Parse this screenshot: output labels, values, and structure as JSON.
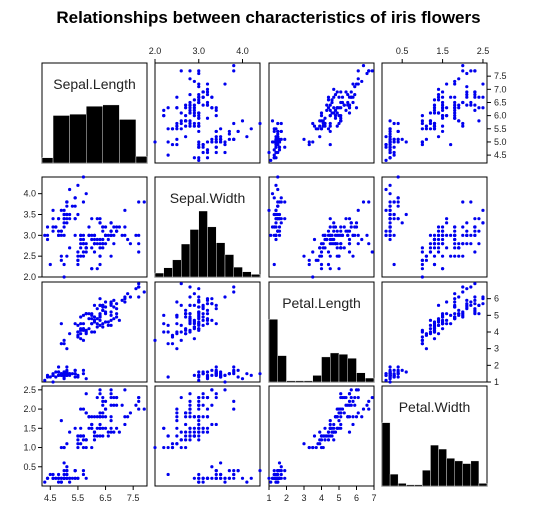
{
  "chart_data": {
    "type": "scatter",
    "subtype": "scatterplot-matrix",
    "title": "Relationships between characteristics of iris flowers",
    "variables": [
      "Sepal.Length",
      "Sepal.Width",
      "Petal.Length",
      "Petal.Width"
    ],
    "ranges": {
      "Sepal.Length": [
        4.2,
        8.0
      ],
      "Sepal.Width": [
        2.0,
        4.4
      ],
      "Petal.Length": [
        1.0,
        7.0
      ],
      "Petal.Width": [
        0.0,
        2.6
      ]
    },
    "tick_labels": {
      "Sepal.Length": [
        "4.5",
        "5.5",
        "6.5",
        "7.5",
        "4.5",
        "5.0",
        "5.5",
        "6.0",
        "6.5",
        "7.0",
        "7.5"
      ],
      "Sepal.Width": [
        "2.0",
        "3.0",
        "4.0",
        "2.0",
        "2.5",
        "3.0",
        "3.5",
        "4.0"
      ],
      "Petal.Length": [
        "1",
        "2",
        "3",
        "4",
        "5",
        "6",
        "7",
        "1",
        "2",
        "3",
        "4",
        "5",
        "6"
      ],
      "Petal.Width": [
        "0.5",
        "1.5",
        "2.5",
        "0.5",
        "1.0",
        "1.5",
        "2.0",
        "2.5"
      ]
    },
    "point_color": "#0000ee",
    "bar_color": "#000000",
    "grid": false,
    "histograms": {
      "Sepal.Length": {
        "bins": [
          4.2,
          4.6,
          5.2,
          5.8,
          6.4,
          7.0,
          7.6,
          8.0
        ],
        "heights": [
          0.08,
          0.72,
          0.74,
          0.86,
          0.88,
          0.66,
          0.1,
          0.08
        ]
      },
      "Sepal.Width": {
        "bins": [
          2.0,
          2.2,
          2.4,
          2.6,
          2.8,
          3.0,
          3.2,
          3.4,
          3.6,
          3.8,
          4.0,
          4.2,
          4.4
        ],
        "heights": [
          0.06,
          0.14,
          0.26,
          0.5,
          0.72,
          1.0,
          0.76,
          0.52,
          0.34,
          0.15,
          0.08,
          0.04
        ]
      },
      "Petal.Length": {
        "bins": [
          1.0,
          1.5,
          2.0,
          2.5,
          3.0,
          3.5,
          4.0,
          4.5,
          5.0,
          5.5,
          6.0,
          6.5,
          7.0
        ],
        "heights": [
          0.95,
          0.4,
          0.02,
          0.02,
          0.02,
          0.1,
          0.38,
          0.44,
          0.42,
          0.36,
          0.14,
          0.06
        ]
      },
      "Petal.Width": {
        "bins": [
          0.0,
          0.2,
          0.4,
          0.6,
          0.8,
          1.0,
          1.2,
          1.4,
          1.6,
          1.8,
          2.0,
          2.2,
          2.4,
          2.6
        ],
        "heights": [
          0.96,
          0.18,
          0.04,
          0.02,
          0.02,
          0.24,
          0.62,
          0.56,
          0.42,
          0.38,
          0.34,
          0.38,
          0.04
        ]
      }
    },
    "points": [
      [
        5.1,
        3.5,
        1.4,
        0.2
      ],
      [
        4.9,
        3.0,
        1.4,
        0.2
      ],
      [
        4.7,
        3.2,
        1.3,
        0.2
      ],
      [
        4.6,
        3.1,
        1.5,
        0.2
      ],
      [
        5.0,
        3.6,
        1.4,
        0.2
      ],
      [
        5.4,
        3.9,
        1.7,
        0.4
      ],
      [
        4.6,
        3.4,
        1.4,
        0.3
      ],
      [
        5.0,
        3.4,
        1.5,
        0.2
      ],
      [
        4.4,
        2.9,
        1.4,
        0.2
      ],
      [
        4.9,
        3.1,
        1.5,
        0.1
      ],
      [
        5.4,
        3.7,
        1.5,
        0.2
      ],
      [
        4.8,
        3.4,
        1.6,
        0.2
      ],
      [
        4.8,
        3.0,
        1.4,
        0.1
      ],
      [
        4.3,
        3.0,
        1.1,
        0.1
      ],
      [
        5.8,
        4.0,
        1.2,
        0.2
      ],
      [
        5.7,
        4.4,
        1.5,
        0.4
      ],
      [
        5.4,
        3.9,
        1.3,
        0.4
      ],
      [
        5.1,
        3.5,
        1.4,
        0.3
      ],
      [
        5.7,
        3.8,
        1.7,
        0.3
      ],
      [
        5.1,
        3.8,
        1.5,
        0.3
      ],
      [
        5.4,
        3.4,
        1.7,
        0.2
      ],
      [
        5.1,
        3.7,
        1.5,
        0.4
      ],
      [
        4.6,
        3.6,
        1.0,
        0.2
      ],
      [
        5.1,
        3.3,
        1.7,
        0.5
      ],
      [
        4.8,
        3.4,
        1.9,
        0.2
      ],
      [
        5.0,
        3.0,
        1.6,
        0.2
      ],
      [
        5.0,
        3.4,
        1.6,
        0.4
      ],
      [
        5.2,
        3.5,
        1.5,
        0.2
      ],
      [
        5.2,
        3.4,
        1.4,
        0.2
      ],
      [
        4.7,
        3.2,
        1.6,
        0.2
      ],
      [
        4.8,
        3.1,
        1.6,
        0.2
      ],
      [
        5.4,
        3.4,
        1.5,
        0.4
      ],
      [
        5.2,
        4.1,
        1.5,
        0.1
      ],
      [
        5.5,
        4.2,
        1.4,
        0.2
      ],
      [
        4.9,
        3.1,
        1.5,
        0.2
      ],
      [
        5.0,
        3.2,
        1.2,
        0.2
      ],
      [
        5.5,
        3.5,
        1.3,
        0.2
      ],
      [
        4.9,
        3.6,
        1.4,
        0.1
      ],
      [
        4.4,
        3.0,
        1.3,
        0.2
      ],
      [
        5.1,
        3.4,
        1.5,
        0.2
      ],
      [
        5.0,
        3.5,
        1.3,
        0.3
      ],
      [
        4.5,
        2.3,
        1.3,
        0.3
      ],
      [
        4.4,
        3.2,
        1.3,
        0.2
      ],
      [
        5.0,
        3.5,
        1.6,
        0.6
      ],
      [
        5.1,
        3.8,
        1.9,
        0.4
      ],
      [
        4.8,
        3.0,
        1.4,
        0.3
      ],
      [
        5.1,
        3.8,
        1.6,
        0.2
      ],
      [
        4.6,
        3.2,
        1.4,
        0.2
      ],
      [
        5.3,
        3.7,
        1.5,
        0.2
      ],
      [
        5.0,
        3.3,
        1.4,
        0.2
      ],
      [
        7.0,
        3.2,
        4.7,
        1.4
      ],
      [
        6.4,
        3.2,
        4.5,
        1.5
      ],
      [
        6.9,
        3.1,
        4.9,
        1.5
      ],
      [
        5.5,
        2.3,
        4.0,
        1.3
      ],
      [
        6.5,
        2.8,
        4.6,
        1.5
      ],
      [
        5.7,
        2.8,
        4.5,
        1.3
      ],
      [
        6.3,
        3.3,
        4.7,
        1.6
      ],
      [
        4.9,
        2.4,
        3.3,
        1.0
      ],
      [
        6.6,
        2.9,
        4.6,
        1.3
      ],
      [
        5.2,
        2.7,
        3.9,
        1.4
      ],
      [
        5.0,
        2.0,
        3.5,
        1.0
      ],
      [
        5.9,
        3.0,
        4.2,
        1.5
      ],
      [
        6.0,
        2.2,
        4.0,
        1.0
      ],
      [
        6.1,
        2.9,
        4.7,
        1.4
      ],
      [
        5.6,
        2.9,
        3.6,
        1.3
      ],
      [
        6.7,
        3.1,
        4.4,
        1.4
      ],
      [
        5.6,
        3.0,
        4.5,
        1.5
      ],
      [
        5.8,
        2.7,
        4.1,
        1.0
      ],
      [
        6.2,
        2.2,
        4.5,
        1.5
      ],
      [
        5.6,
        2.5,
        3.9,
        1.1
      ],
      [
        5.9,
        3.2,
        4.8,
        1.8
      ],
      [
        6.1,
        2.8,
        4.0,
        1.3
      ],
      [
        6.3,
        2.5,
        4.9,
        1.5
      ],
      [
        6.1,
        2.8,
        4.7,
        1.2
      ],
      [
        6.4,
        2.9,
        4.3,
        1.3
      ],
      [
        6.6,
        3.0,
        4.4,
        1.4
      ],
      [
        6.8,
        2.8,
        4.8,
        1.4
      ],
      [
        6.7,
        3.0,
        5.0,
        1.7
      ],
      [
        6.0,
        2.9,
        4.5,
        1.5
      ],
      [
        5.7,
        2.6,
        3.5,
        1.0
      ],
      [
        5.5,
        2.4,
        3.8,
        1.1
      ],
      [
        5.5,
        2.4,
        3.7,
        1.0
      ],
      [
        5.8,
        2.7,
        3.9,
        1.2
      ],
      [
        6.0,
        2.7,
        5.1,
        1.6
      ],
      [
        5.4,
        3.0,
        4.5,
        1.5
      ],
      [
        6.0,
        3.4,
        4.5,
        1.6
      ],
      [
        6.7,
        3.1,
        4.7,
        1.5
      ],
      [
        6.3,
        2.3,
        4.4,
        1.3
      ],
      [
        5.6,
        3.0,
        4.1,
        1.3
      ],
      [
        5.5,
        2.5,
        4.0,
        1.3
      ],
      [
        5.5,
        2.6,
        4.4,
        1.2
      ],
      [
        6.1,
        3.0,
        4.6,
        1.4
      ],
      [
        5.8,
        2.6,
        4.0,
        1.2
      ],
      [
        5.0,
        2.3,
        3.3,
        1.0
      ],
      [
        5.6,
        2.7,
        4.2,
        1.3
      ],
      [
        5.7,
        3.0,
        4.2,
        1.2
      ],
      [
        5.7,
        2.9,
        4.2,
        1.3
      ],
      [
        6.2,
        2.9,
        4.3,
        1.3
      ],
      [
        5.1,
        2.5,
        3.0,
        1.1
      ],
      [
        5.7,
        2.8,
        4.1,
        1.3
      ],
      [
        6.3,
        3.3,
        6.0,
        2.5
      ],
      [
        5.8,
        2.7,
        5.1,
        1.9
      ],
      [
        7.1,
        3.0,
        5.9,
        2.1
      ],
      [
        6.3,
        2.9,
        5.6,
        1.8
      ],
      [
        6.5,
        3.0,
        5.8,
        2.2
      ],
      [
        7.6,
        3.0,
        6.6,
        2.1
      ],
      [
        4.9,
        2.5,
        4.5,
        1.7
      ],
      [
        7.3,
        2.9,
        6.3,
        1.8
      ],
      [
        6.7,
        2.5,
        5.8,
        1.8
      ],
      [
        7.2,
        3.6,
        6.1,
        2.5
      ],
      [
        6.5,
        3.2,
        5.1,
        2.0
      ],
      [
        6.4,
        2.7,
        5.3,
        1.9
      ],
      [
        6.8,
        3.0,
        5.5,
        2.1
      ],
      [
        5.7,
        2.5,
        5.0,
        2.0
      ],
      [
        5.8,
        2.8,
        5.1,
        2.4
      ],
      [
        6.4,
        3.2,
        5.3,
        2.3
      ],
      [
        6.5,
        3.0,
        5.5,
        1.8
      ],
      [
        7.7,
        3.8,
        6.7,
        2.2
      ],
      [
        7.7,
        2.6,
        6.9,
        2.3
      ],
      [
        6.0,
        2.2,
        5.0,
        1.5
      ],
      [
        6.9,
        3.2,
        5.7,
        2.3
      ],
      [
        5.6,
        2.8,
        4.9,
        2.0
      ],
      [
        7.7,
        2.8,
        6.7,
        2.0
      ],
      [
        6.3,
        2.7,
        4.9,
        1.8
      ],
      [
        6.7,
        3.3,
        5.7,
        2.1
      ],
      [
        7.2,
        3.2,
        6.0,
        1.8
      ],
      [
        6.2,
        2.8,
        4.8,
        1.8
      ],
      [
        6.1,
        3.0,
        4.9,
        1.8
      ],
      [
        6.4,
        2.8,
        5.6,
        2.1
      ],
      [
        7.2,
        3.0,
        5.8,
        1.6
      ],
      [
        7.4,
        2.8,
        6.1,
        1.9
      ],
      [
        7.9,
        3.8,
        6.4,
        2.0
      ],
      [
        6.4,
        2.8,
        5.6,
        2.2
      ],
      [
        6.3,
        2.8,
        5.1,
        1.5
      ],
      [
        6.1,
        2.6,
        5.6,
        1.4
      ],
      [
        7.7,
        3.0,
        6.1,
        2.3
      ],
      [
        6.3,
        3.4,
        5.6,
        2.4
      ],
      [
        6.4,
        3.1,
        5.5,
        1.8
      ],
      [
        6.0,
        3.0,
        4.8,
        1.8
      ],
      [
        6.9,
        3.1,
        5.4,
        2.1
      ],
      [
        6.7,
        3.1,
        5.6,
        2.4
      ],
      [
        6.9,
        3.1,
        5.1,
        2.3
      ],
      [
        5.8,
        2.7,
        5.1,
        1.9
      ],
      [
        6.8,
        3.2,
        5.9,
        2.3
      ],
      [
        6.7,
        3.3,
        5.7,
        2.5
      ],
      [
        6.7,
        3.0,
        5.2,
        2.3
      ],
      [
        6.3,
        2.5,
        5.0,
        1.9
      ],
      [
        6.5,
        3.0,
        5.2,
        2.0
      ],
      [
        6.2,
        3.4,
        5.4,
        2.3
      ],
      [
        5.9,
        3.0,
        5.1,
        1.8
      ]
    ]
  }
}
